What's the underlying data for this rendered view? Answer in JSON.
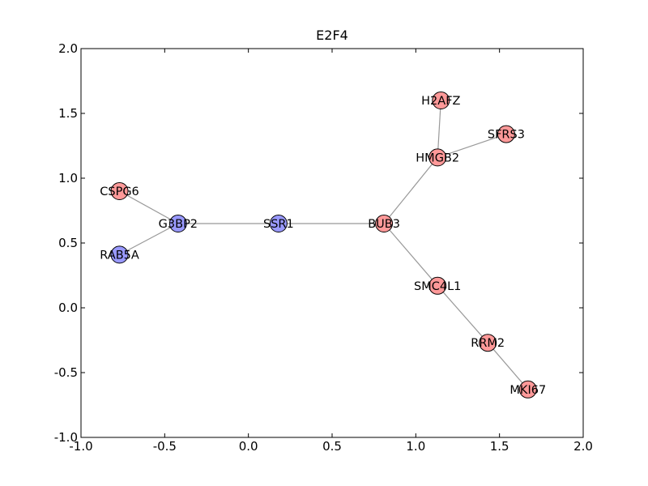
{
  "chart_data": {
    "type": "scatter",
    "title": "E2F4",
    "xlabel": "",
    "ylabel": "",
    "xlim": [
      -1.0,
      2.0
    ],
    "ylim": [
      -1.0,
      2.0
    ],
    "grid": false,
    "x_ticks": [
      "-1.0",
      "-0.5",
      "0.0",
      "0.5",
      "1.0",
      "1.5",
      "2.0"
    ],
    "x_tick_values": [
      -1.0,
      -0.5,
      0.0,
      0.5,
      1.0,
      1.5,
      2.0
    ],
    "y_ticks": [
      "-1.0",
      "-0.5",
      "0.0",
      "0.5",
      "1.0",
      "1.5",
      "2.0"
    ],
    "y_tick_values": [
      -1.0,
      -0.5,
      0.0,
      0.5,
      1.0,
      1.5,
      2.0
    ],
    "node_colors": {
      "red": "#ff9999",
      "blue": "#9999ff"
    },
    "edge_color": "#999999",
    "nodes": [
      {
        "label": "CSPG6",
        "x": -0.77,
        "y": 0.9,
        "color": "red"
      },
      {
        "label": "RAB5A",
        "x": -0.77,
        "y": 0.41,
        "color": "blue"
      },
      {
        "label": "G3BP2",
        "x": -0.42,
        "y": 0.65,
        "color": "blue"
      },
      {
        "label": "SSR1",
        "x": 0.18,
        "y": 0.65,
        "color": "blue"
      },
      {
        "label": "BUB3",
        "x": 0.81,
        "y": 0.65,
        "color": "red"
      },
      {
        "label": "H2AFZ",
        "x": 1.15,
        "y": 1.6,
        "color": "red"
      },
      {
        "label": "HMGB2",
        "x": 1.13,
        "y": 1.16,
        "color": "red"
      },
      {
        "label": "SFRS3",
        "x": 1.54,
        "y": 1.34,
        "color": "red"
      },
      {
        "label": "SMC4L1",
        "x": 1.13,
        "y": 0.17,
        "color": "red"
      },
      {
        "label": "RRM2",
        "x": 1.43,
        "y": -0.27,
        "color": "red"
      },
      {
        "label": "MKI67",
        "x": 1.67,
        "y": -0.63,
        "color": "red"
      }
    ],
    "edges": [
      [
        "CSPG6",
        "G3BP2"
      ],
      [
        "RAB5A",
        "G3BP2"
      ],
      [
        "G3BP2",
        "SSR1"
      ],
      [
        "SSR1",
        "BUB3"
      ],
      [
        "BUB3",
        "HMGB2"
      ],
      [
        "HMGB2",
        "H2AFZ"
      ],
      [
        "HMGB2",
        "SFRS3"
      ],
      [
        "BUB3",
        "SMC4L1"
      ],
      [
        "SMC4L1",
        "RRM2"
      ],
      [
        "RRM2",
        "MKI67"
      ]
    ]
  }
}
